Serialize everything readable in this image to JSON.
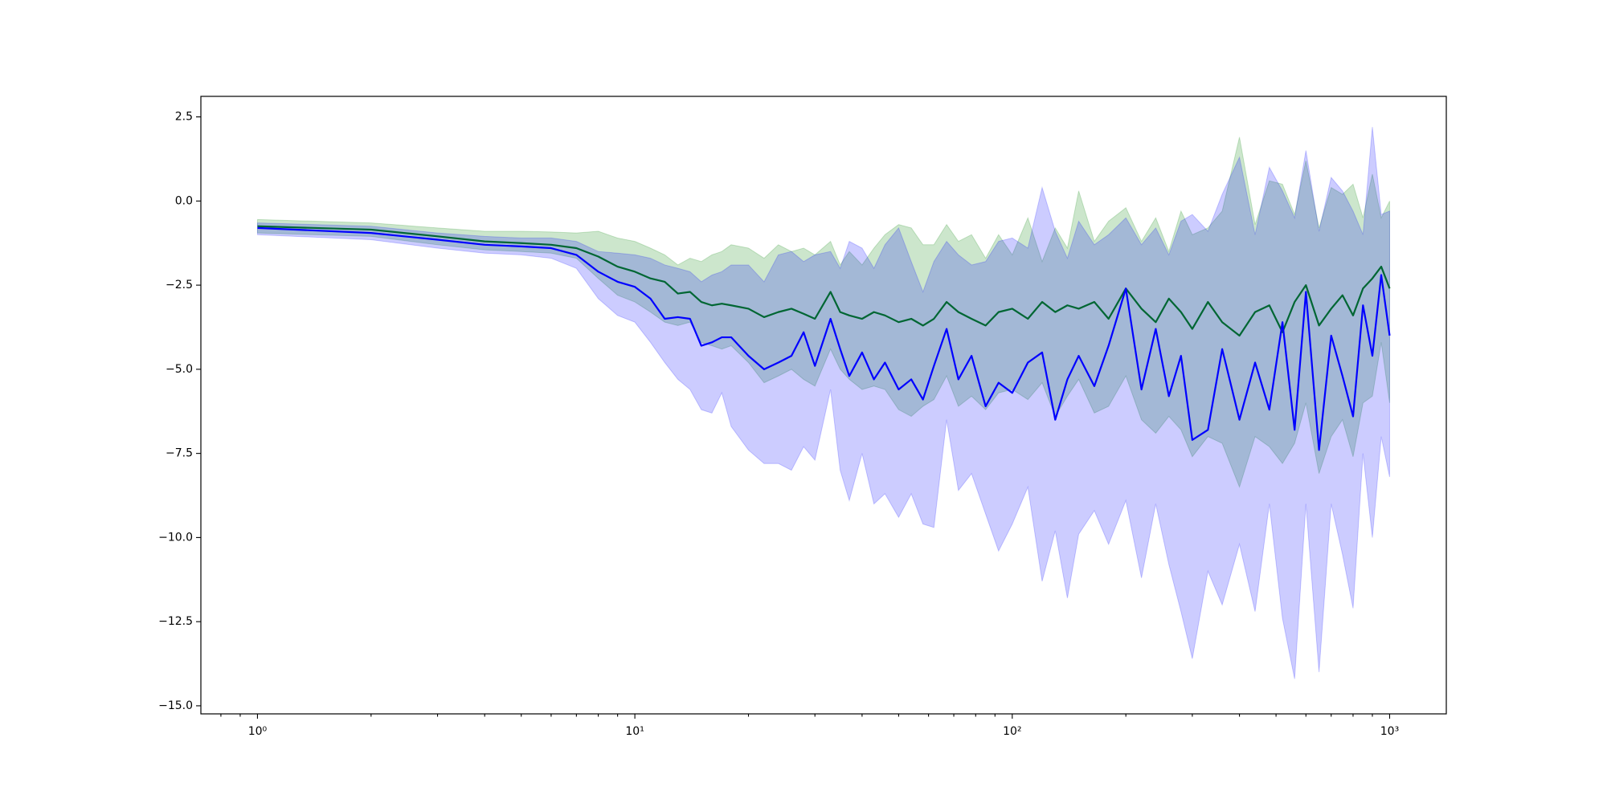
{
  "chart_data": {
    "type": "line",
    "xscale": "log",
    "xlim": [
      0.708,
      1413
    ],
    "ylim": [
      -15.24,
      3.11
    ],
    "xticks": [
      {
        "value": 1,
        "label": "10⁰"
      },
      {
        "value": 10,
        "label": "10¹"
      },
      {
        "value": 100,
        "label": "10²"
      },
      {
        "value": 1000,
        "label": "10³"
      }
    ],
    "xminorticks": [
      0.8,
      0.9,
      2,
      3,
      4,
      5,
      6,
      7,
      8,
      9,
      20,
      30,
      40,
      50,
      60,
      70,
      80,
      90,
      200,
      300,
      400,
      500,
      600,
      700,
      800,
      900
    ],
    "yticks": [
      {
        "value": -15,
        "label": "−15.0"
      },
      {
        "value": -12.5,
        "label": "−12.5"
      },
      {
        "value": -10,
        "label": "−10.0"
      },
      {
        "value": -7.5,
        "label": "−7.5"
      },
      {
        "value": -5,
        "label": "−5.0"
      },
      {
        "value": -2.5,
        "label": "−2.5"
      },
      {
        "value": 0,
        "label": "0.0"
      },
      2.5
    ],
    "band_opacity": 0.2,
    "x": [
      1,
      2,
      3,
      4,
      5,
      6,
      7,
      8,
      9,
      10,
      11,
      12,
      13,
      14,
      15,
      16,
      17,
      18,
      20,
      22,
      24,
      26,
      28,
      30,
      33,
      35,
      37,
      40,
      43,
      46,
      50,
      54,
      58,
      62,
      67,
      72,
      78,
      85,
      92,
      100,
      110,
      120,
      130,
      140,
      150,
      165,
      180,
      200,
      220,
      240,
      260,
      280,
      300,
      330,
      360,
      400,
      440,
      480,
      520,
      560,
      600,
      650,
      700,
      750,
      800,
      850,
      900,
      950,
      1000
    ],
    "series": [
      {
        "color": "#008000",
        "values": [
          -0.75,
          -0.85,
          -1.05,
          -1.2,
          -1.25,
          -1.3,
          -1.4,
          -1.65,
          -1.95,
          -2.1,
          -2.3,
          -2.4,
          -2.75,
          -2.7,
          -3.0,
          -3.1,
          -3.05,
          -3.1,
          -3.2,
          -3.45,
          -3.3,
          -3.2,
          -3.35,
          -3.5,
          -2.7,
          -3.3,
          -3.4,
          -3.5,
          -3.3,
          -3.4,
          -3.6,
          -3.5,
          -3.7,
          -3.5,
          -3.0,
          -3.3,
          -3.5,
          -3.7,
          -3.3,
          -3.2,
          -3.5,
          -3.0,
          -3.3,
          -3.1,
          -3.2,
          -3.0,
          -3.5,
          -2.6,
          -3.2,
          -3.6,
          -2.9,
          -3.3,
          -3.8,
          -3.0,
          -3.6,
          -4.0,
          -3.3,
          -3.1,
          -3.9,
          -3.0,
          -2.5,
          -3.7,
          -3.2,
          -2.8,
          -3.4,
          -2.6,
          -2.3,
          -1.95,
          -2.6
        ],
        "lower": [
          -0.95,
          -1.05,
          -1.3,
          -1.45,
          -1.5,
          -1.55,
          -1.7,
          -2.3,
          -2.8,
          -3.0,
          -3.3,
          -3.6,
          -3.7,
          -3.6,
          -4.2,
          -4.3,
          -4.4,
          -4.3,
          -4.8,
          -5.4,
          -5.2,
          -5.0,
          -5.3,
          -5.5,
          -4.4,
          -5.0,
          -5.3,
          -5.6,
          -5.5,
          -5.6,
          -6.2,
          -6.4,
          -6.1,
          -5.9,
          -5.2,
          -6.1,
          -5.8,
          -6.2,
          -5.7,
          -5.6,
          -5.9,
          -5.4,
          -6.4,
          -5.8,
          -5.3,
          -6.3,
          -6.1,
          -5.2,
          -6.5,
          -6.9,
          -6.4,
          -6.8,
          -7.6,
          -7.0,
          -7.2,
          -8.5,
          -7.0,
          -7.3,
          -7.8,
          -7.2,
          -6.0,
          -8.1,
          -7.0,
          -6.5,
          -7.6,
          -6.0,
          -5.8,
          -4.2,
          -6.0
        ],
        "upper": [
          -0.55,
          -0.65,
          -0.8,
          -0.9,
          -0.9,
          -0.92,
          -0.95,
          -0.9,
          -1.1,
          -1.2,
          -1.4,
          -1.6,
          -1.9,
          -1.7,
          -1.8,
          -1.6,
          -1.5,
          -1.3,
          -1.4,
          -1.7,
          -1.3,
          -1.5,
          -1.4,
          -1.6,
          -1.2,
          -1.9,
          -1.5,
          -1.9,
          -1.4,
          -1.0,
          -0.7,
          -0.8,
          -1.3,
          -1.3,
          -0.7,
          -1.2,
          -1.0,
          -1.7,
          -1.0,
          -1.6,
          -0.5,
          -1.8,
          -0.8,
          -1.4,
          0.3,
          -1.2,
          -0.6,
          -0.2,
          -1.2,
          -0.5,
          -1.5,
          -0.3,
          -1.0,
          -0.8,
          -0.3,
          1.9,
          -0.7,
          0.6,
          0.5,
          -0.4,
          1.2,
          -0.8,
          0.4,
          0.2,
          0.5,
          -0.5,
          0.8,
          -0.5,
          0.0
        ]
      },
      {
        "color": "#0000ff",
        "values": [
          -0.8,
          -0.95,
          -1.15,
          -1.3,
          -1.35,
          -1.4,
          -1.6,
          -2.1,
          -2.4,
          -2.55,
          -2.9,
          -3.5,
          -3.45,
          -3.5,
          -4.3,
          -4.2,
          -4.05,
          -4.05,
          -4.6,
          -5.0,
          -4.8,
          -4.6,
          -3.9,
          -4.9,
          -3.5,
          -4.4,
          -5.2,
          -4.5,
          -5.3,
          -4.8,
          -5.6,
          -5.3,
          -5.9,
          -4.9,
          -3.8,
          -5.3,
          -4.6,
          -6.1,
          -5.4,
          -5.7,
          -4.8,
          -4.5,
          -6.5,
          -5.3,
          -4.6,
          -5.5,
          -4.3,
          -2.6,
          -5.6,
          -3.8,
          -5.8,
          -4.6,
          -7.1,
          -6.8,
          -4.4,
          -6.5,
          -4.8,
          -6.2,
          -3.6,
          -6.8,
          -2.7,
          -7.4,
          -4.0,
          -5.2,
          -6.4,
          -3.1,
          -4.6,
          -2.2,
          -4.0
        ],
        "lower": [
          -1.0,
          -1.15,
          -1.4,
          -1.55,
          -1.6,
          -1.7,
          -2.0,
          -2.9,
          -3.4,
          -3.6,
          -4.2,
          -4.8,
          -5.3,
          -5.6,
          -6.2,
          -6.3,
          -5.7,
          -6.7,
          -7.4,
          -7.8,
          -7.8,
          -8.0,
          -7.3,
          -7.7,
          -5.6,
          -8.0,
          -8.9,
          -7.5,
          -9.0,
          -8.7,
          -9.4,
          -8.7,
          -9.6,
          -9.7,
          -6.5,
          -8.6,
          -8.1,
          -9.3,
          -10.4,
          -9.6,
          -8.5,
          -11.3,
          -9.8,
          -11.8,
          -9.9,
          -9.2,
          -10.2,
          -8.9,
          -11.2,
          -9.0,
          -10.8,
          -12.2,
          -13.6,
          -11.0,
          -12.0,
          -10.2,
          -12.2,
          -9.0,
          -12.4,
          -14.2,
          -9.0,
          -14.0,
          -9.0,
          -10.5,
          -12.1,
          -7.5,
          -10.0,
          -7.0,
          -8.2
        ],
        "upper": [
          -0.65,
          -0.75,
          -0.95,
          -1.05,
          -1.1,
          -1.1,
          -1.2,
          -1.5,
          -1.55,
          -1.6,
          -1.7,
          -1.9,
          -2.0,
          -2.1,
          -2.4,
          -2.2,
          -2.1,
          -1.9,
          -1.9,
          -2.4,
          -1.6,
          -1.5,
          -1.8,
          -1.6,
          -1.5,
          -2.0,
          -1.2,
          -1.4,
          -2.0,
          -1.3,
          -0.8,
          -1.8,
          -2.7,
          -1.8,
          -1.2,
          -1.6,
          -1.9,
          -1.8,
          -1.2,
          -1.1,
          -1.4,
          0.4,
          -0.9,
          -1.7,
          -0.6,
          -1.3,
          -1.0,
          -0.5,
          -1.3,
          -0.8,
          -1.6,
          -0.6,
          -0.4,
          -0.9,
          0.2,
          1.3,
          -1.0,
          1.0,
          0.3,
          -0.5,
          1.5,
          -0.9,
          0.7,
          0.3,
          -0.3,
          -1.0,
          2.2,
          -0.4,
          -0.3
        ]
      }
    ]
  }
}
